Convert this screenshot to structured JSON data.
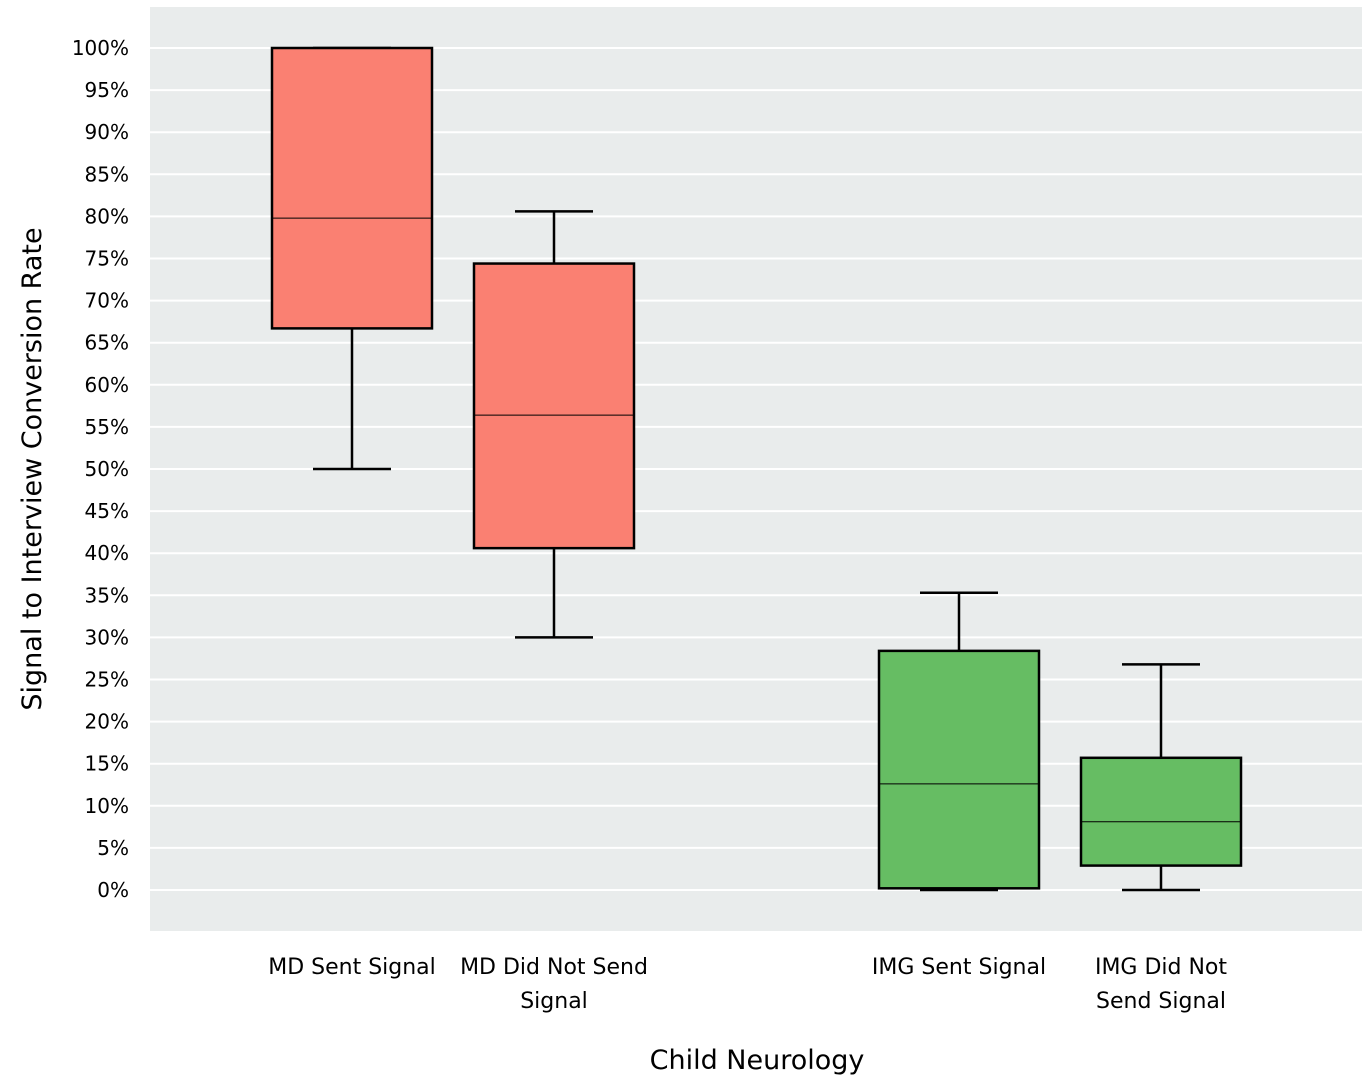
{
  "chart_data": {
    "type": "box",
    "xlabel": "Child Neurology",
    "ylabel": "Signal to Interview Conversion Rate",
    "ylim": [
      0,
      100
    ],
    "y_unit": "%",
    "y_ticks": [
      "0%",
      "5%",
      "10%",
      "15%",
      "20%",
      "25%",
      "30%",
      "35%",
      "40%",
      "45%",
      "50%",
      "55%",
      "60%",
      "65%",
      "70%",
      "75%",
      "80%",
      "85%",
      "90%",
      "95%",
      "100%"
    ],
    "grid": true,
    "legend": "none",
    "groups": [
      {
        "boxes": [
          {
            "label": [
              "MD Sent Signal"
            ],
            "min": 50,
            "q1": 66.7,
            "median": 79.8,
            "q3": 100,
            "max": 100,
            "color": "#fa8072"
          },
          {
            "label": [
              "MD Did Not Send",
              "Signal"
            ],
            "min": 30,
            "q1": 40.6,
            "median": 56.4,
            "q3": 74.4,
            "max": 80.6,
            "color": "#fa8072"
          }
        ]
      },
      {
        "boxes": [
          {
            "label": [
              "IMG Sent Signal"
            ],
            "min": 0,
            "q1": 0.2,
            "median": 12.6,
            "q3": 28.4,
            "max": 35.3,
            "color": "#66bd63"
          },
          {
            "label": [
              "IMG Did Not",
              "Send Signal"
            ],
            "min": 0,
            "q1": 2.9,
            "median": 8.1,
            "q3": 15.7,
            "max": 26.8,
            "color": "#66bd63"
          }
        ]
      }
    ],
    "colors": {
      "plot_background": "#e9ecec",
      "grid": "#ffffff",
      "box_edge": "#000000"
    }
  }
}
